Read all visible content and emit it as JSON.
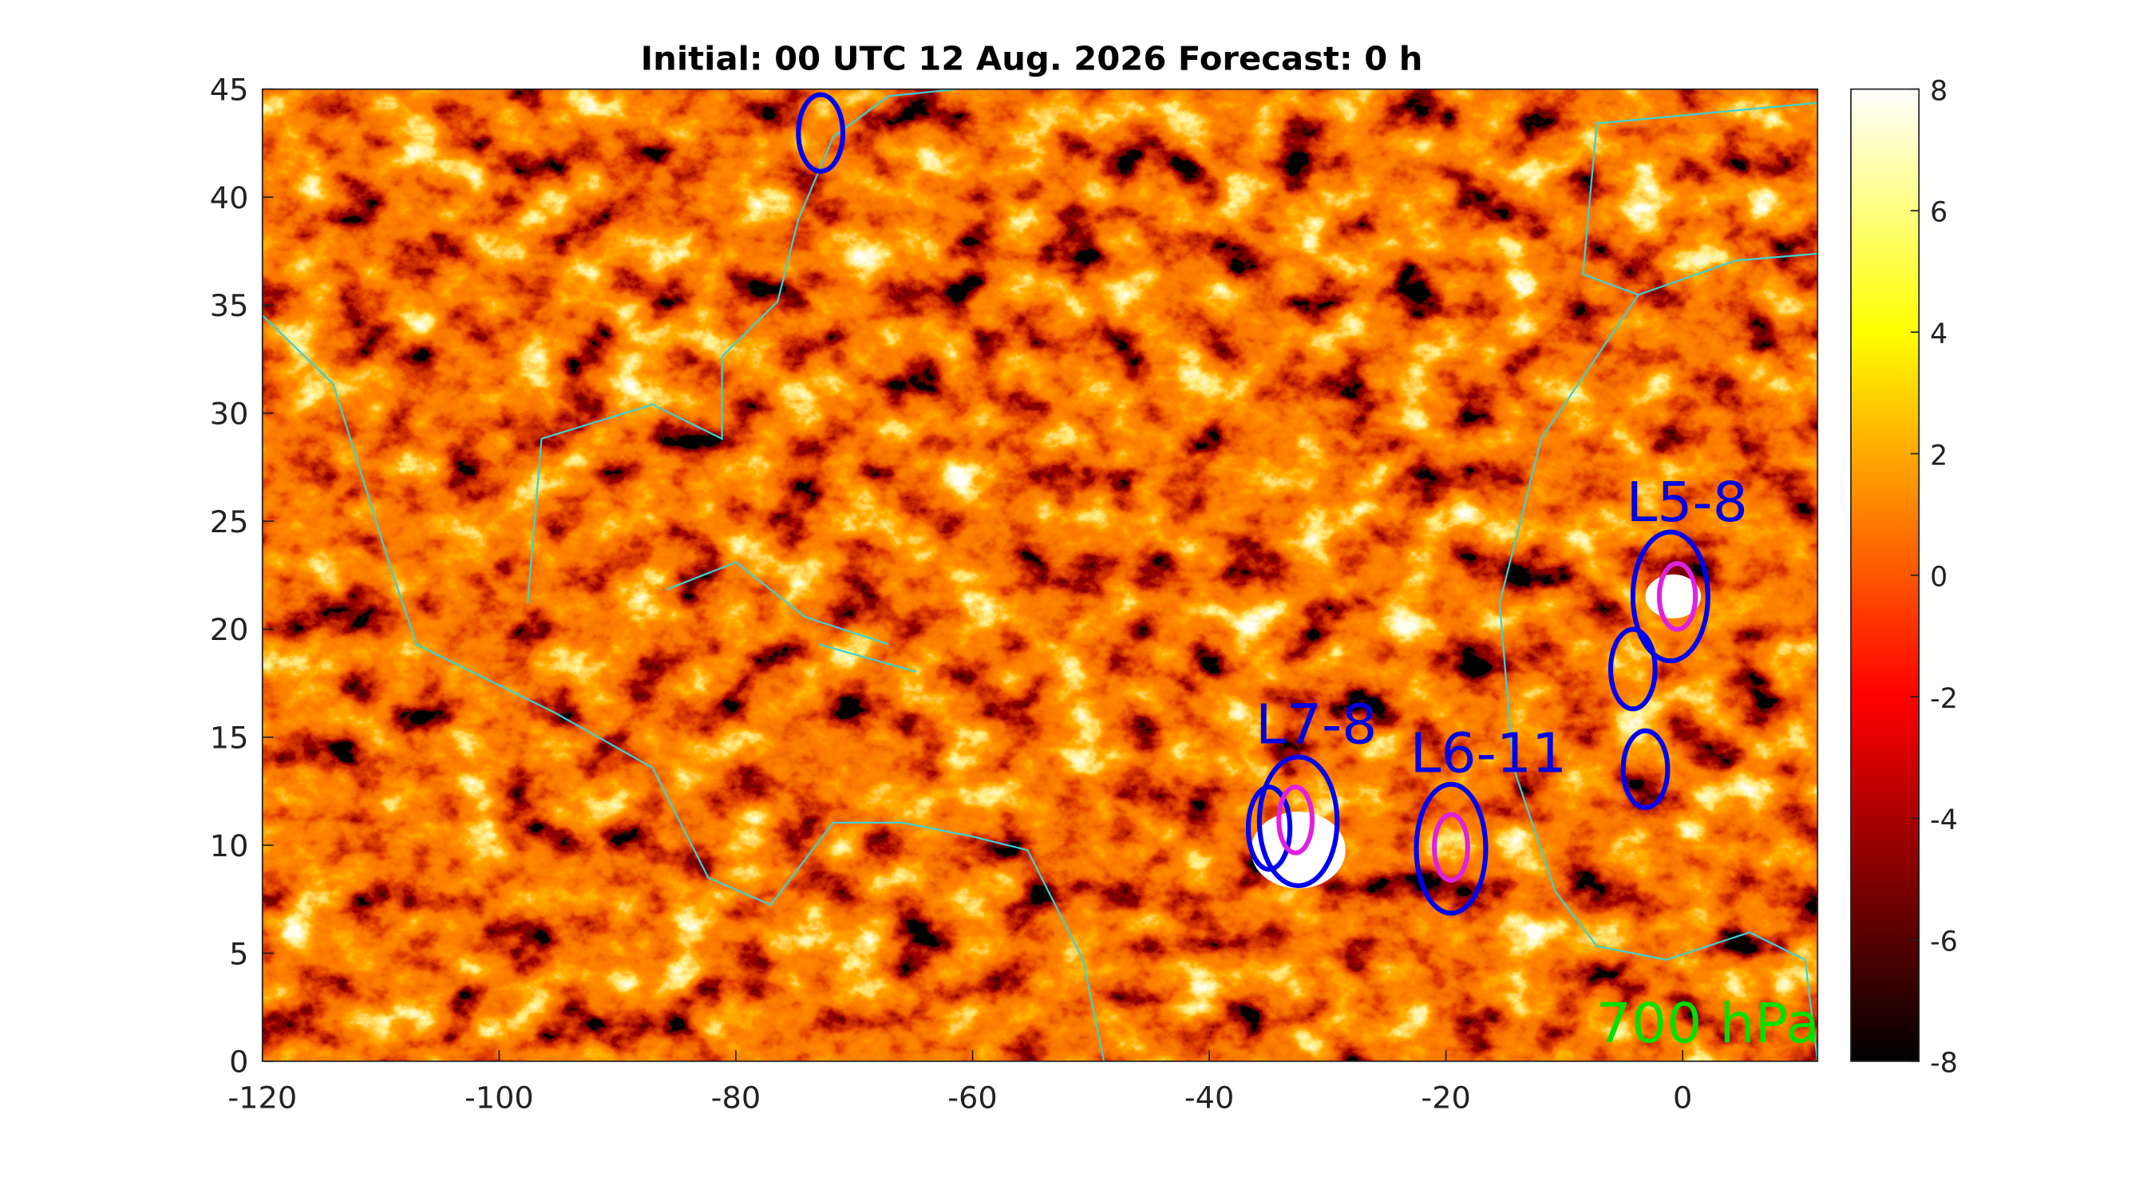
{
  "chart_data": {
    "type": "heatmap",
    "title": "Initial: 00 UTC 12 Aug. 2026 Forecast: 0 h",
    "xlim": [
      -120,
      11.4
    ],
    "xticks": [
      -120,
      -100,
      -80,
      -60,
      -40,
      -20,
      0
    ],
    "ylim": [
      0,
      45
    ],
    "yticks": [
      0,
      5,
      10,
      15,
      20,
      25,
      30,
      35,
      40,
      45
    ],
    "colorbar": {
      "lim": [
        -8,
        8
      ],
      "ticks": [
        -8,
        -6,
        -4,
        -2,
        0,
        2,
        4,
        6,
        8
      ]
    },
    "annotations": [
      "L5-8",
      "L7-8",
      "L6-11",
      "700 hPa"
    ]
  }
}
